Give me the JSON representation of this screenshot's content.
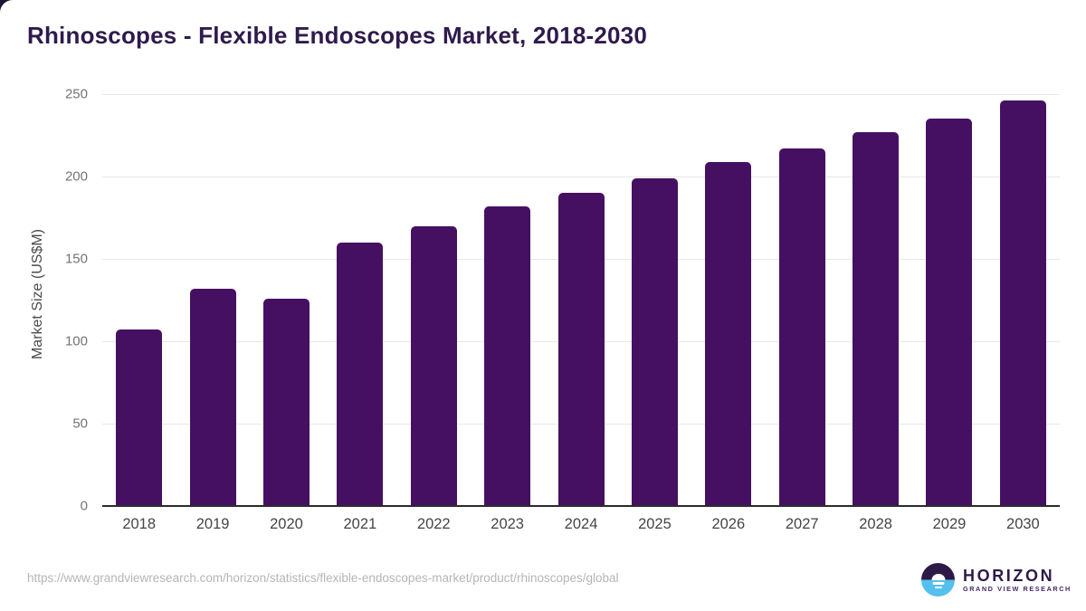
{
  "title": "Rhinoscopes - Flexible Endoscopes Market, 2018-2030",
  "chart_data": {
    "type": "bar",
    "title": "Rhinoscopes - Flexible Endoscopes Market, 2018-2030",
    "categories": [
      "2018",
      "2019",
      "2020",
      "2021",
      "2022",
      "2023",
      "2024",
      "2025",
      "2026",
      "2027",
      "2028",
      "2029",
      "2030"
    ],
    "values": [
      107,
      132,
      126,
      160,
      170,
      182,
      190,
      199,
      209,
      217,
      227,
      235,
      246
    ],
    "xlabel": "",
    "ylabel": "Market Size (US$M)",
    "ylim": [
      0,
      250
    ],
    "yticks": [
      0,
      50,
      100,
      150,
      200,
      250
    ],
    "grid": "horizontal",
    "legend_position": "none",
    "bar_color": "#461062"
  },
  "colors": {
    "title_text": "#2f1a4d",
    "bar": "#461062",
    "gridline": "#e8e8e8",
    "axis_line": "#2b2b2b",
    "y_tick_text": "#737373",
    "x_tick_text": "#454545",
    "url_text": "#b5b5b5",
    "logo_purple": "#2e1a47",
    "logo_blue": "#54c0ee"
  },
  "footer": {
    "source_url": "https://www.grandviewresearch.com/horizon/statistics/flexible-endoscopes-market/product/rhinoscopes/global",
    "logo": {
      "icon": "horizon-sunrise-icon",
      "name": "HORIZON",
      "subtitle": "GRAND VIEW RESEARCH"
    }
  }
}
